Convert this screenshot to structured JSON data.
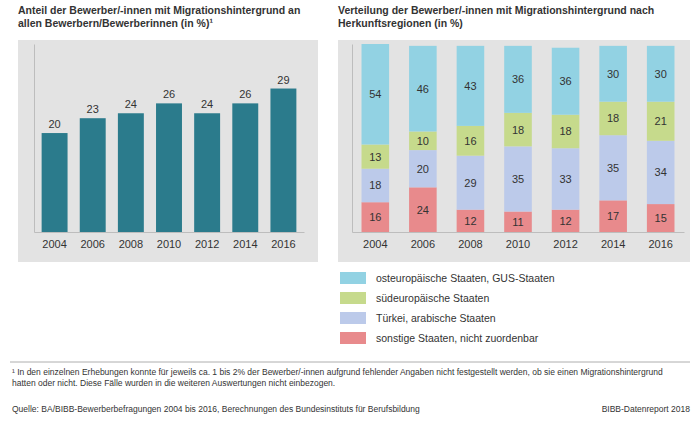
{
  "chart_data": [
    {
      "type": "bar",
      "title": "Anteil der Bewerber/-innen mit Migrationshintergrund an allen Bewerbern/Bewerberinnen (in %)¹",
      "categories": [
        "2004",
        "2006",
        "2008",
        "2010",
        "2012",
        "2014",
        "2016"
      ],
      "values": [
        20,
        23,
        24,
        26,
        24,
        26,
        29
      ],
      "color": "#2b7b8c",
      "ylim": [
        0,
        38
      ],
      "yticks": [],
      "tick_labels": "x",
      "data_labels": true
    },
    {
      "type": "bar",
      "stacked": true,
      "title": "Verteilung der Bewerber/-innen mit Migrationshintergrund nach Herkunftsregionen (in %)",
      "categories": [
        "2004",
        "2006",
        "2008",
        "2010",
        "2012",
        "2014",
        "2016"
      ],
      "series": [
        {
          "name": "osteuropäische Staaten, GUS-Staaten",
          "color": "#92d2e3",
          "values": [
            54,
            46,
            43,
            36,
            36,
            30,
            30
          ]
        },
        {
          "name": "südeuropäische Staaten",
          "color": "#c6da8c",
          "values": [
            13,
            10,
            16,
            18,
            18,
            18,
            21
          ]
        },
        {
          "name": "Türkei, arabische Staaten",
          "color": "#bccaea",
          "values": [
            18,
            20,
            29,
            35,
            33,
            35,
            34
          ]
        },
        {
          "name": "sonstige Staaten, nicht zuordenbar",
          "color": "#e88a8c",
          "values": [
            16,
            24,
            12,
            11,
            12,
            17,
            15
          ]
        }
      ],
      "ylim": [
        0,
        101
      ],
      "yticks": [],
      "tick_labels": "x",
      "data_labels": true,
      "legend": "bottom"
    }
  ],
  "footnote": "¹ In den einzelnen Erhebungen konnte für jeweils ca. 1 bis 2% der Bewerber/-innen aufgrund fehlender Angaben nicht festgestellt werden, ob sie einen Migrationshintergrund hatten oder nicht. Diese Fälle wurden in die weiteren Auswertungen nicht einbezogen.",
  "source": "Quelle: BA/BIBB-Bewerberbefragungen 2004 bis 2016, Berechnungen des Bundesinstituts für Berufsbildung",
  "credit": "BIBB-Datenreport 2018"
}
